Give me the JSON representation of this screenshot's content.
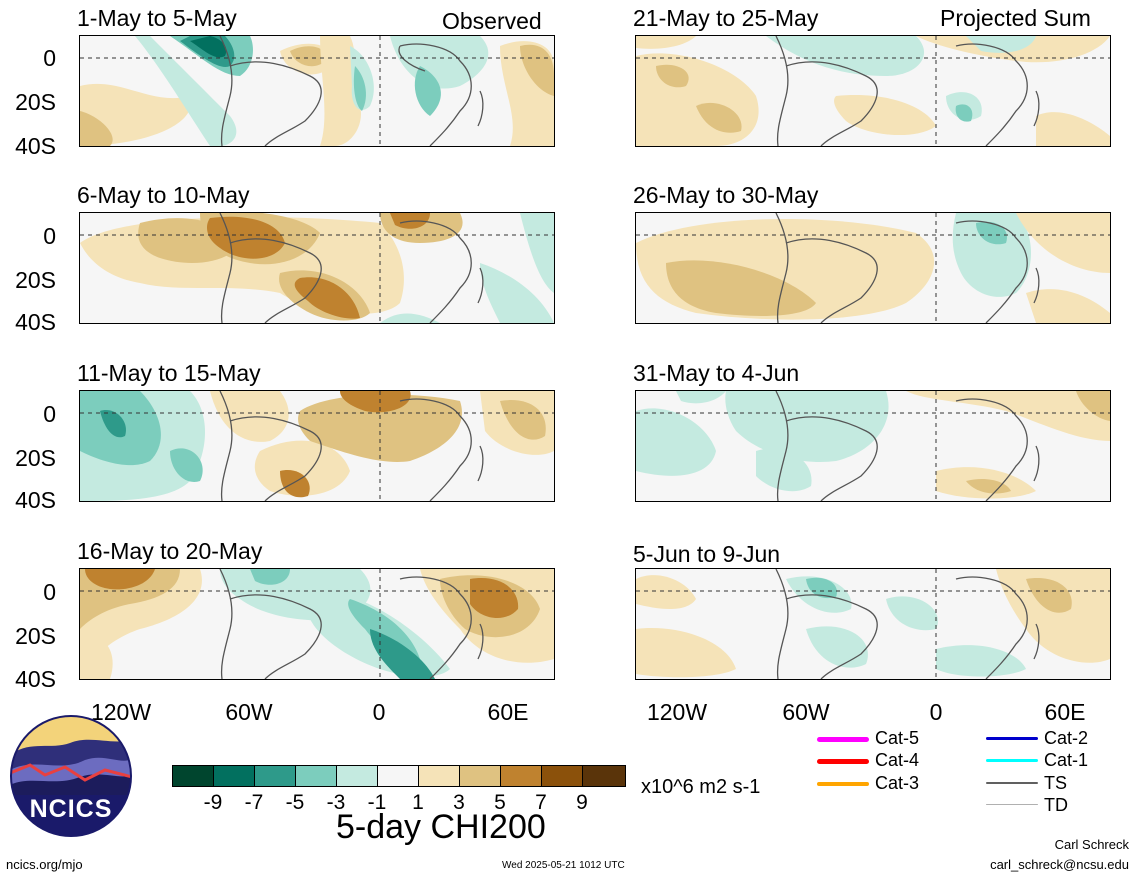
{
  "left_header": "Observed",
  "right_header": "Projected Sum",
  "panels_left": [
    {
      "title": "1-May to 5-May"
    },
    {
      "title": "6-May to 10-May"
    },
    {
      "title": "11-May to 15-May"
    },
    {
      "title": "16-May to 20-May"
    }
  ],
  "panels_right": [
    {
      "title": "21-May to 25-May"
    },
    {
      "title": "26-May to 30-May"
    },
    {
      "title": "31-May to 4-Jun"
    },
    {
      "title": "5-Jun to 9-Jun"
    }
  ],
  "lat_labels": [
    "0",
    "20S",
    "40S"
  ],
  "lon_labels": [
    "120W",
    "60W",
    "0",
    "60E"
  ],
  "colorbar": {
    "colors": [
      "#00452e",
      "#02705f",
      "#2e9a8a",
      "#7ccdbd",
      "#c4eae0",
      "#f6f6f6",
      "#f5e3b8",
      "#dfc281",
      "#bf822f",
      "#8b510b",
      "#5a340a"
    ],
    "labels": [
      "-9",
      "-7",
      "-5",
      "-3",
      "-1",
      "1",
      "3",
      "5",
      "7",
      "9"
    ],
    "units": "x10^6 m2 s-1",
    "title": "5-day CHI200"
  },
  "storm_legend": [
    {
      "label": "Cat-5",
      "color": "#ff00ff"
    },
    {
      "label": "Cat-4",
      "color": "#ff0000"
    },
    {
      "label": "Cat-3",
      "color": "#ffa500"
    },
    {
      "label": "Cat-2",
      "color": "#0000cc"
    },
    {
      "label": "Cat-1",
      "color": "#00ffff"
    },
    {
      "label": "TS",
      "color": "#606060"
    },
    {
      "label": "TD",
      "color": "#b0b0b0"
    }
  ],
  "logo_text": "NCICS",
  "footer": {
    "site": "ncics.org/mjo",
    "timestamp": "Wed 2025-05-21 1012 UTC",
    "author": "Carl Schreck",
    "email": "carl_schreck@ncsu.edu"
  }
}
